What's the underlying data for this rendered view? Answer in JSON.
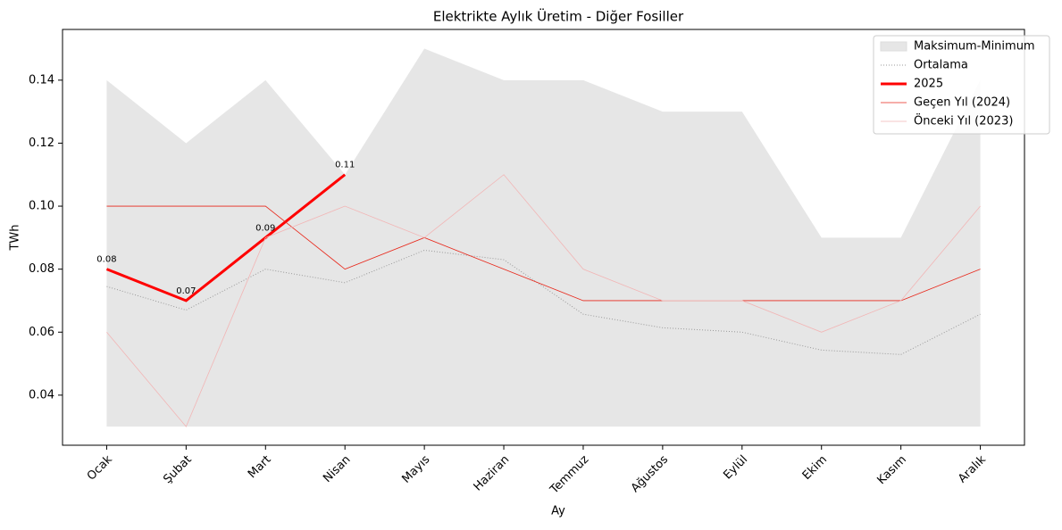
{
  "chart_data": {
    "type": "line",
    "title": "Elektrikte Aylık Üretim - Diğer Fosiller",
    "xlabel": "Ay",
    "ylabel": "TWh",
    "categories": [
      "Ocak",
      "Şubat",
      "Mart",
      "Nisan",
      "Mayıs",
      "Haziran",
      "Temmuz",
      "Ağustos",
      "Eylül",
      "Ekim",
      "Kasım",
      "Aralık"
    ],
    "band": {
      "name": "Maksimum-Minimum",
      "color": "#e6e6e6",
      "max": [
        0.14,
        0.12,
        0.14,
        0.11,
        0.15,
        0.14,
        0.14,
        0.13,
        0.13,
        0.09,
        0.09,
        0.14
      ],
      "min": [
        0.03,
        0.03,
        0.03,
        0.03,
        0.03,
        0.03,
        0.03,
        0.03,
        0.03,
        0.03,
        0.03,
        0.03
      ]
    },
    "series": [
      {
        "name": "Ortalama",
        "color": "#999999",
        "width": 1,
        "style": "dotted",
        "values": [
          0.0745,
          0.067,
          0.08,
          0.0757,
          0.086,
          0.083,
          0.0657,
          0.0614,
          0.06,
          0.0543,
          0.0529,
          0.0657
        ]
      },
      {
        "name": "2025",
        "color": "#ff0000",
        "width": 3,
        "style": "solid",
        "data_labels": true,
        "values": [
          0.08,
          0.07,
          0.09,
          0.11,
          null,
          null,
          null,
          null,
          null,
          null,
          null,
          null
        ]
      },
      {
        "name": "Geçen Yıl (2024)",
        "color": "#e8271a",
        "width": 0.8,
        "style": "solid",
        "values": [
          0.1,
          0.1,
          0.1,
          0.08,
          0.09,
          0.08,
          0.07,
          0.07,
          0.07,
          0.07,
          0.07,
          0.08
        ]
      },
      {
        "name": "Önceki Yıl (2023)",
        "color": "#f2b5b5",
        "width": 0.8,
        "style": "solid",
        "values": [
          0.06,
          0.03,
          0.09,
          0.1,
          0.09,
          0.11,
          0.08,
          0.07,
          0.07,
          0.06,
          0.07,
          0.1
        ]
      }
    ],
    "ylim": [
      0.0241,
      0.1561
    ],
    "yticks": [
      0.04,
      0.06,
      0.08,
      0.1,
      0.12,
      0.14
    ],
    "ytick_labels": [
      "0.04",
      "0.06",
      "0.08",
      "0.10",
      "0.12",
      "0.14"
    ],
    "legend": "upper right"
  }
}
